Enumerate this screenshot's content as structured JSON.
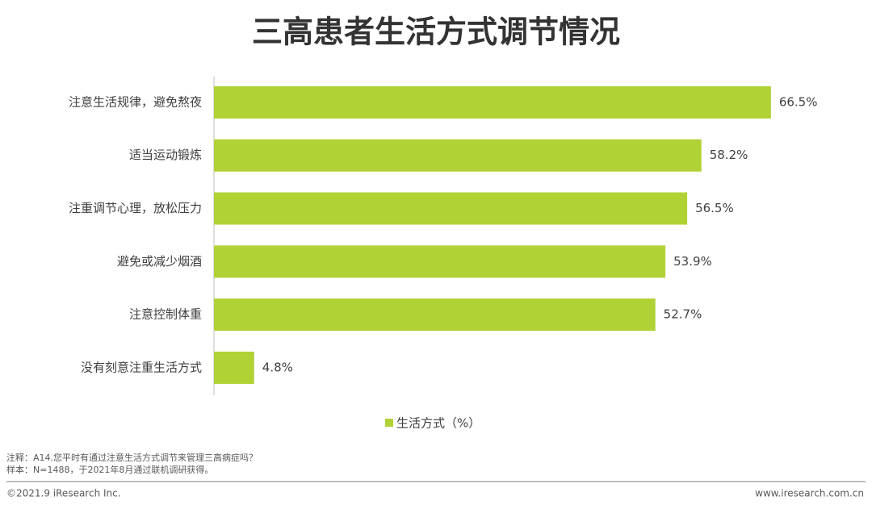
{
  "chart_data": {
    "type": "bar",
    "orientation": "horizontal",
    "title": "三高患者生活方式调节情况",
    "categories": [
      "注意生活规律，避免熬夜",
      "适当运动锻炼",
      "注重调节心理，放松压力",
      "避免或减少烟酒",
      "注意控制体重",
      "没有刻意注重生活方式"
    ],
    "series": [
      {
        "name": "生活方式（%）",
        "color": "#b0d234",
        "values": [
          66.5,
          58.2,
          56.5,
          53.9,
          52.7,
          4.8
        ],
        "value_labels": [
          "66.5%",
          "58.2%",
          "56.5%",
          "53.9%",
          "52.7%",
          "4.8%"
        ]
      }
    ],
    "xlim": [
      0,
      75
    ]
  },
  "notes": [
    "注释：A14.您平时有通过注意生活方式调节来管理三高病症吗？",
    "样本：N=1488，于2021年8月通过联机调研获得。"
  ],
  "footer": {
    "copyright": "©2021.9 iResearch Inc.",
    "website": "www.iresearch.com.cn"
  }
}
